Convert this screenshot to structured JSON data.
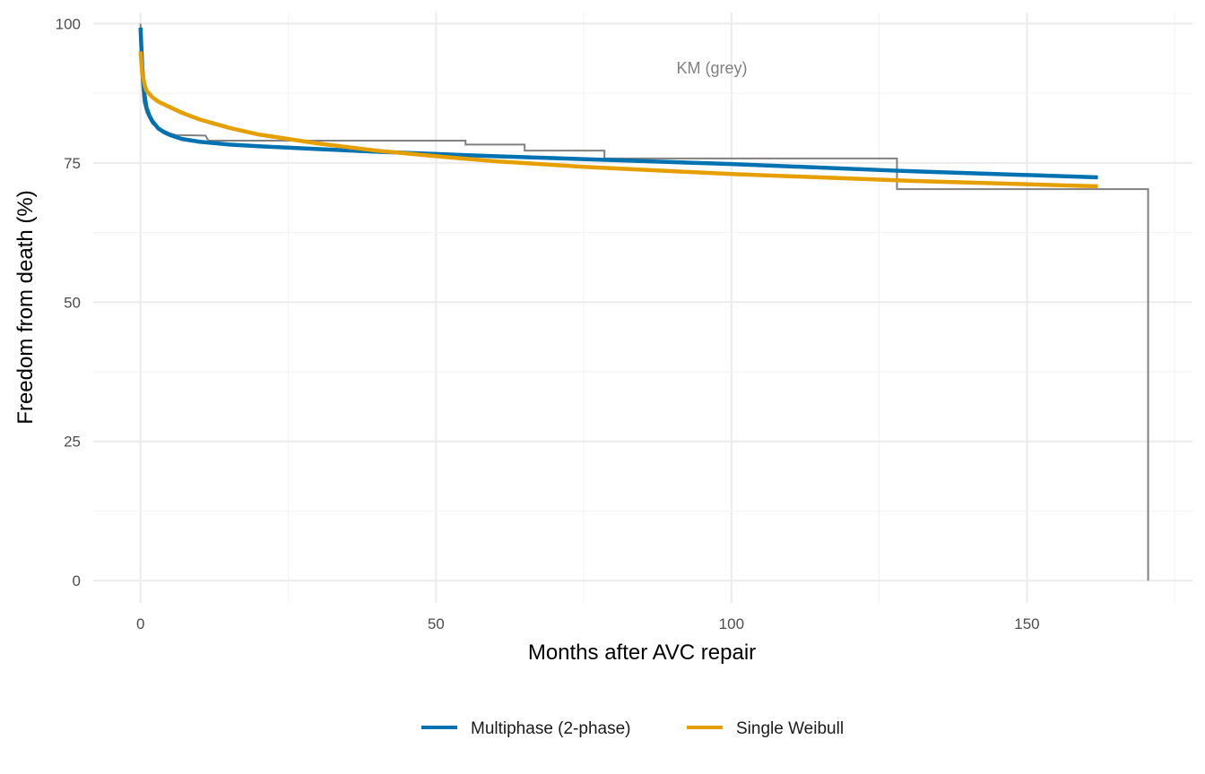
{
  "chart_data": {
    "type": "line",
    "title": "",
    "xlabel": "Months after AVC repair",
    "ylabel": "Freedom from death (%)",
    "xlim": [
      -8,
      178
    ],
    "ylim": [
      -4,
      102
    ],
    "xticks": [
      0,
      50,
      100,
      150
    ],
    "yticks": [
      0,
      25,
      50,
      75,
      100
    ],
    "grid": true,
    "legend_position": "bottom",
    "annotation": "KM (grey)",
    "km": {
      "name": "Kaplan-Meier",
      "color": "#808080",
      "steps": [
        [
          0,
          100
        ],
        [
          0.2,
          90
        ],
        [
          0.5,
          86
        ],
        [
          1,
          84
        ],
        [
          2,
          82
        ],
        [
          3,
          81.2
        ],
        [
          4,
          80.8
        ],
        [
          5,
          80.3
        ],
        [
          6,
          80
        ],
        [
          11,
          79.9
        ],
        [
          11.5,
          79
        ],
        [
          55,
          79
        ],
        [
          55,
          78.3
        ],
        [
          65,
          78.3
        ],
        [
          65,
          77.2
        ],
        [
          78.5,
          77.2
        ],
        [
          78.5,
          75.8
        ],
        [
          128,
          75.8
        ],
        [
          128,
          70.3
        ],
        [
          170.5,
          70.3
        ],
        [
          170.5,
          0
        ]
      ]
    },
    "series": [
      {
        "name": "Multiphase (2-phase)",
        "color": "#0072B2",
        "x": [
          0,
          0.3,
          0.7,
          1,
          1.5,
          2,
          3,
          4,
          5,
          7,
          10,
          15,
          20,
          30,
          40,
          50,
          60,
          80,
          100,
          128,
          162
        ],
        "y": [
          99.3,
          92,
          87,
          85,
          83.5,
          82.5,
          81.2,
          80.5,
          80,
          79.3,
          78.8,
          78.3,
          78,
          77.5,
          77,
          76.6,
          76.2,
          75.5,
          74.8,
          73.6,
          72.4
        ]
      },
      {
        "name": "Single Weibull",
        "color": "#E69F00",
        "x": [
          0,
          0.3,
          0.7,
          1,
          2,
          3,
          5,
          7,
          10,
          15,
          20,
          30,
          40,
          50,
          60,
          75,
          100,
          130,
          162
        ],
        "y": [
          95,
          91,
          89,
          88,
          86.8,
          86,
          85,
          84,
          82.8,
          81.3,
          80.1,
          78.5,
          77.2,
          76.2,
          75.3,
          74.3,
          73,
          71.8,
          70.8
        ]
      }
    ]
  }
}
